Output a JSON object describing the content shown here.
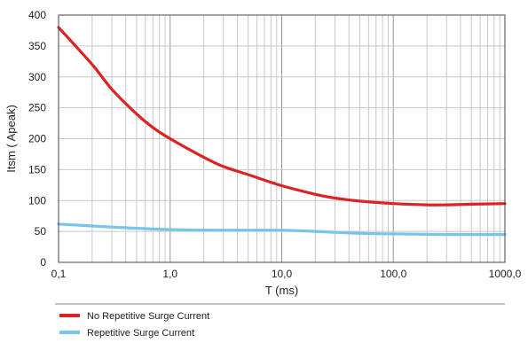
{
  "chart_data": {
    "type": "line",
    "xlabel": "T (ms)",
    "ylabel": "Itsm ( Apeak)",
    "xscale": "log",
    "xlim": [
      0.1,
      1000
    ],
    "ylim": [
      0,
      400
    ],
    "x_tick_labels": [
      "0,1",
      "1,0",
      "10,0",
      "100,0",
      "1000,0"
    ],
    "y_tick_labels": [
      "0",
      "50",
      "100",
      "150",
      "200",
      "250",
      "300",
      "350",
      "400"
    ],
    "grid": true,
    "legend_position": "bottom",
    "series": [
      {
        "name": "No Repetitive Surge Current",
        "color": "#dd2222",
        "points": [
          [
            0.1,
            380
          ],
          [
            0.2,
            320
          ],
          [
            0.3,
            280
          ],
          [
            0.5,
            240
          ],
          [
            0.7,
            218
          ],
          [
            1,
            200
          ],
          [
            2,
            170
          ],
          [
            3,
            155
          ],
          [
            5,
            142
          ],
          [
            10,
            124
          ],
          [
            20,
            110
          ],
          [
            30,
            104
          ],
          [
            50,
            99
          ],
          [
            100,
            95
          ],
          [
            200,
            93
          ],
          [
            300,
            93
          ],
          [
            500,
            94
          ],
          [
            1000,
            95
          ]
        ]
      },
      {
        "name": "Repetitive Surge Current",
        "color": "#77c5ea",
        "points": [
          [
            0.1,
            62
          ],
          [
            0.3,
            57
          ],
          [
            1,
            53
          ],
          [
            3,
            52
          ],
          [
            10,
            52
          ],
          [
            20,
            50
          ],
          [
            50,
            47
          ],
          [
            100,
            46
          ],
          [
            300,
            45
          ],
          [
            1000,
            45
          ]
        ]
      }
    ]
  }
}
